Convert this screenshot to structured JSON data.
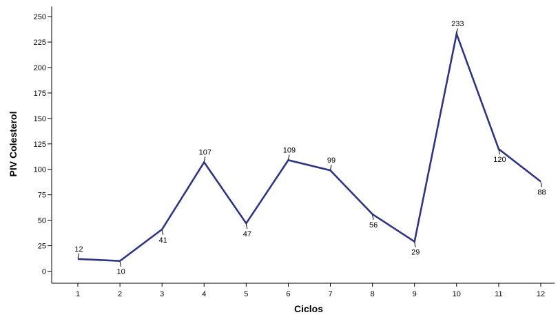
{
  "chart_data": {
    "type": "line",
    "title": "",
    "xlabel": "Ciclos",
    "ylabel": "PIV Colesterol",
    "categories": [
      "1",
      "2",
      "3",
      "4",
      "5",
      "6",
      "7",
      "8",
      "9",
      "10",
      "11",
      "12"
    ],
    "series": [
      {
        "values": [
          12,
          10,
          41,
          107,
          47,
          109,
          99,
          56,
          29,
          233,
          120,
          88
        ],
        "color": "#2e3580"
      }
    ],
    "data_labels": [
      "12",
      "10",
      "41",
      "107",
      "47",
      "109",
      "99",
      "56",
      "29",
      "233",
      "120",
      "88"
    ],
    "label_position": [
      "above",
      "below",
      "below",
      "above",
      "below",
      "above",
      "above",
      "below",
      "below",
      "above",
      "below",
      "below"
    ],
    "yticks": [
      0,
      25,
      50,
      75,
      100,
      125,
      150,
      175,
      200,
      225,
      250
    ],
    "ytick_labels": [
      "0",
      "25",
      "50",
      "75",
      "100",
      "125",
      "150",
      "175",
      "200",
      "225",
      "250"
    ],
    "ylim": [
      0,
      260
    ],
    "grid": false,
    "legend": false
  }
}
